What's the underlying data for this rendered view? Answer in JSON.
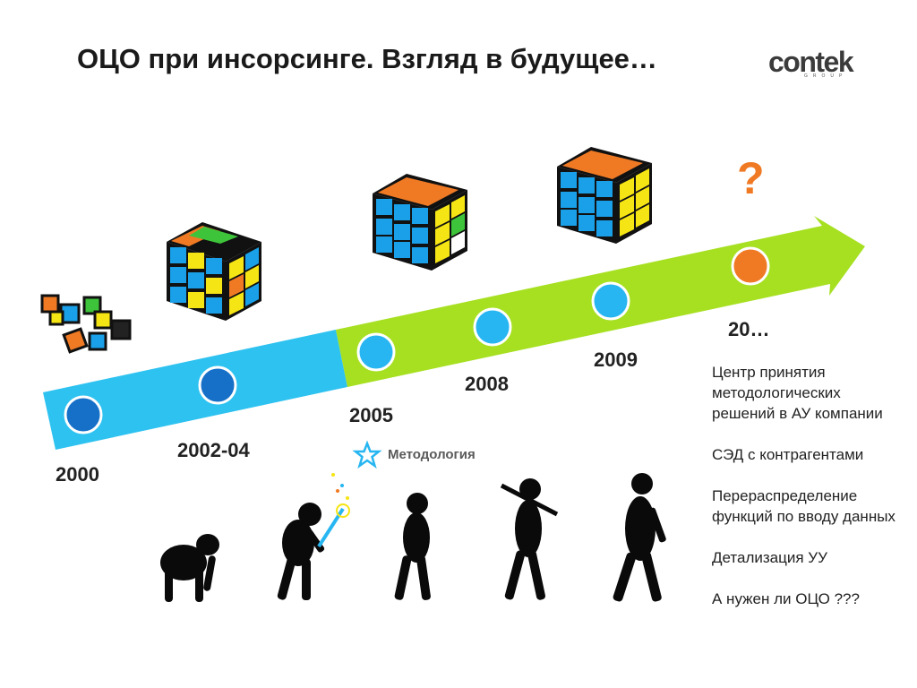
{
  "slide": {
    "title": "ОЦО при инсорсинге. Взгляд в будущее…",
    "logo": {
      "name": "contek",
      "sub": "GROUP"
    }
  },
  "timeline": {
    "years": [
      "2000",
      "2002-04",
      "2005",
      "2008",
      "2009",
      "20…"
    ],
    "question_mark": "?",
    "method_label": "Методология",
    "colors": {
      "blue_band": "#2ec2f0",
      "green_arrow": "#a6e021",
      "dark_node": "#1670c8",
      "light_node": "#27b6f1",
      "future_node": "#f07a24"
    }
  },
  "notes": [
    "Центр принятия методологических решений в АУ компании",
    "СЭД с контрагентами",
    "Перераспределение функций по вводу данных",
    "Детализация УУ",
    "А нужен ли ОЦО ???"
  ]
}
